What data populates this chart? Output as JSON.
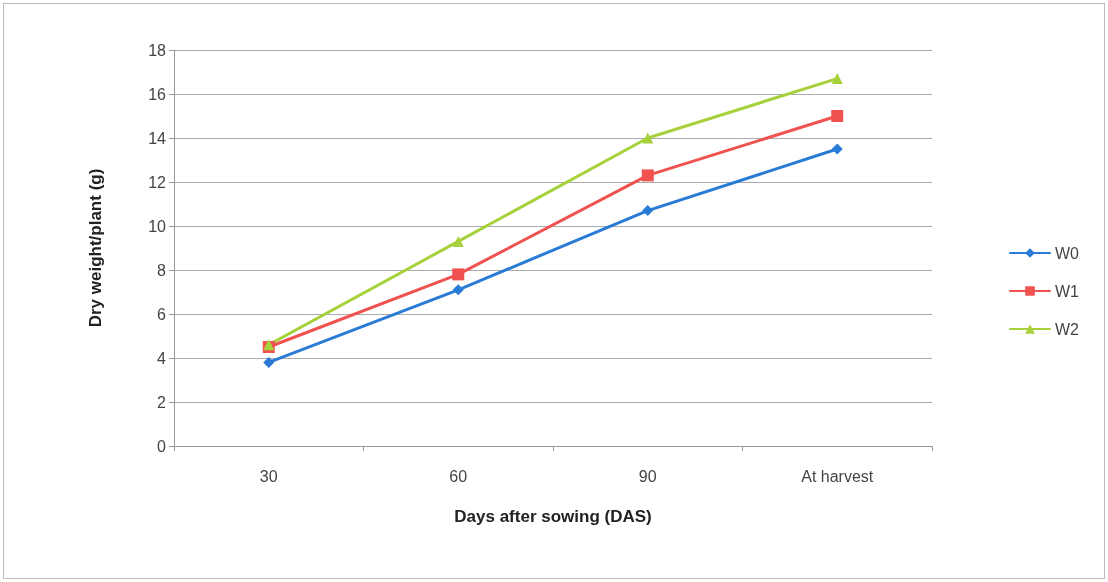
{
  "chart_data": {
    "type": "line",
    "xlabel": "Days after sowing (DAS)",
    "ylabel": "Dry weight/plant (g)",
    "categories": [
      "30",
      "60",
      "90",
      "At harvest"
    ],
    "series": [
      {
        "name": "W0",
        "color": "#2a7bd5",
        "marker": "diamond",
        "values": [
          3.8,
          7.1,
          10.7,
          13.5
        ]
      },
      {
        "name": "W1",
        "color": "#f0524f",
        "marker": "square",
        "values": [
          4.5,
          7.8,
          12.3,
          15.0
        ]
      },
      {
        "name": "W2",
        "color": "#a6d13a",
        "marker": "triangle",
        "values": [
          4.6,
          9.3,
          14.0,
          16.7
        ]
      }
    ],
    "ylim": [
      0,
      18
    ],
    "yticks": [
      0,
      2,
      4,
      6,
      8,
      10,
      12,
      14,
      16,
      18
    ],
    "grid": "y",
    "legend": "right",
    "line_style": "solid"
  }
}
